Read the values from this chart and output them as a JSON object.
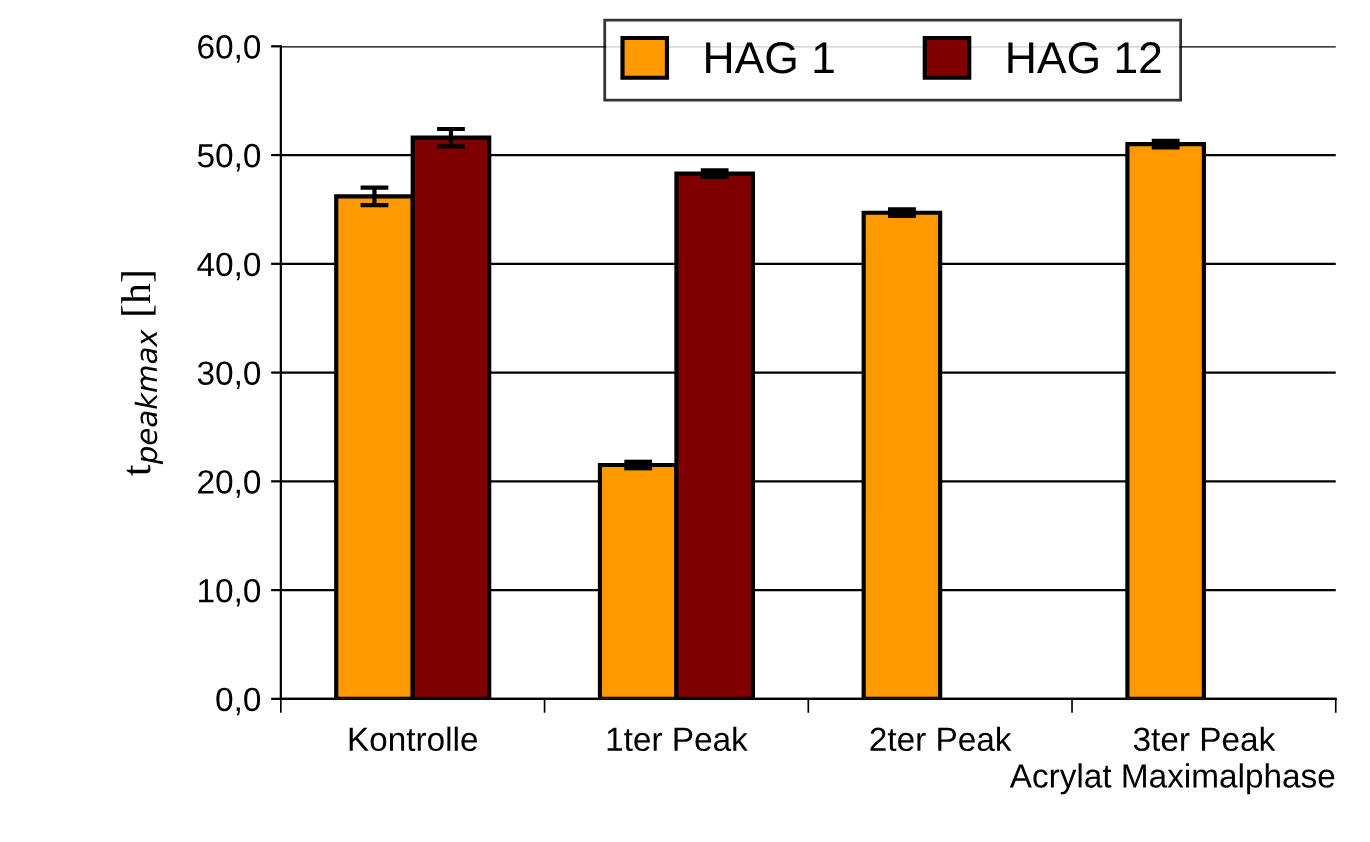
{
  "chart_data": {
    "type": "bar",
    "xlabel": "Acrylat Maximalphase",
    "ylabel": "t$_{peakmax}$ [h]",
    "categories": [
      "Kontrolle",
      "1ter Peak",
      "2ter Peak",
      "3ter Peak"
    ],
    "series": [
      {
        "name": "HAG 1",
        "color": "#ff9900",
        "values": [
          46.2,
          21.5,
          44.7,
          51.0
        ],
        "errors": [
          0.8,
          0.3,
          0.3,
          0.3
        ]
      },
      {
        "name": "HAG 12",
        "color": "#800000",
        "values": [
          51.6,
          48.3,
          null,
          null
        ],
        "errors": [
          0.8,
          0.3,
          null,
          null
        ]
      }
    ],
    "ylim": [
      0,
      60
    ],
    "yticks": [
      {
        "value": 0,
        "label": "0,0"
      },
      {
        "value": 10,
        "label": "10,0"
      },
      {
        "value": 20,
        "label": "20,0"
      },
      {
        "value": 30,
        "label": "30,0"
      },
      {
        "value": 40,
        "label": "40,0"
      },
      {
        "value": 50,
        "label": "50,0"
      },
      {
        "value": 60,
        "label": "60,0"
      }
    ],
    "grid": "y",
    "legend": "top"
  }
}
